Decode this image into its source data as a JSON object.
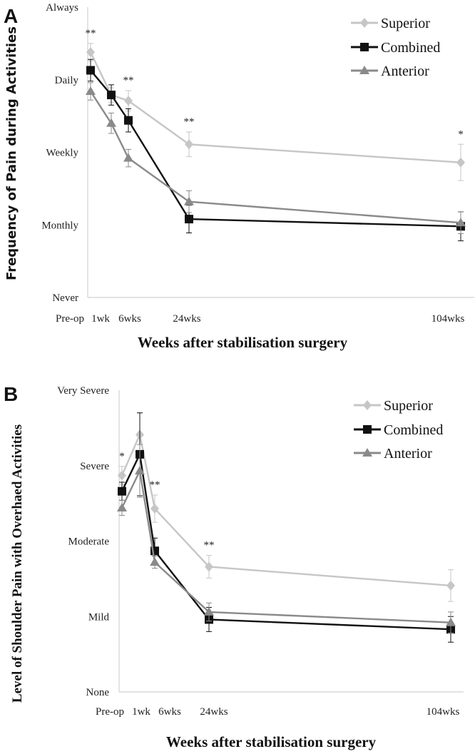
{
  "colors": {
    "Superior": "#c6c6c6",
    "Combined": "#111111",
    "Anterior": "#8a8a8a"
  },
  "chart_data": [
    {
      "panel_label": "A",
      "type": "line",
      "ylabel": "Frequency of Pain during Activities",
      "xlabel": "Weeks after stabilisation surgery",
      "y_tick_labels": [
        "Never",
        "Monthly",
        "Weekly",
        "Daily",
        "Always"
      ],
      "ylim": [
        0,
        4
      ],
      "categories": [
        "Pre-op",
        "1wk",
        "6wks",
        "24wks",
        "104wks"
      ],
      "legend_position": "top-right",
      "grid": false,
      "series": [
        {
          "name": "Superior",
          "marker": "diamond",
          "values": [
            3.38,
            2.79,
            2.71,
            2.11,
            1.86
          ],
          "error": [
            0.12,
            0.1,
            0.14,
            0.17,
            0.25
          ]
        },
        {
          "name": "Combined",
          "marker": "square",
          "values": [
            3.13,
            2.79,
            2.44,
            1.08,
            0.98
          ],
          "error": [
            0.15,
            0.14,
            0.16,
            0.19,
            0.2
          ]
        },
        {
          "name": "Anterior",
          "marker": "triangle",
          "values": [
            2.84,
            2.4,
            1.92,
            1.32,
            1.03
          ],
          "error": [
            0.12,
            0.14,
            0.12,
            0.15,
            0.15
          ]
        }
      ],
      "annotations": [
        {
          "category": "Pre-op",
          "text": "**"
        },
        {
          "category": "6wks",
          "text": "**"
        },
        {
          "category": "24wks",
          "text": "**"
        },
        {
          "category": "104wks",
          "text": "*"
        }
      ]
    },
    {
      "panel_label": "B",
      "type": "line",
      "ylabel": "Level of Shoulder Pain with Overhaed Activities",
      "xlabel": "Weeks after stabilisation surgery",
      "y_tick_labels": [
        "None",
        "Mild",
        "Moderate",
        "Severe",
        "Very Severe"
      ],
      "ylim": [
        0,
        4
      ],
      "categories": [
        "Pre-op",
        "1wk",
        "6wks",
        "24wks",
        "104wks"
      ],
      "legend_position": "top-right",
      "grid": false,
      "series": [
        {
          "name": "Superior",
          "marker": "diamond",
          "values": [
            2.87,
            3.41,
            2.43,
            1.66,
            1.41
          ],
          "error": [
            0.12,
            0.29,
            0.18,
            0.15,
            0.21
          ]
        },
        {
          "name": "Combined",
          "marker": "square",
          "values": [
            2.66,
            3.15,
            1.87,
            0.96,
            0.83
          ],
          "error": [
            0.12,
            0.55,
            0.17,
            0.16,
            0.17
          ]
        },
        {
          "name": "Anterior",
          "marker": "triangle",
          "values": [
            2.44,
            2.93,
            1.72,
            1.06,
            0.92
          ],
          "error": [
            0.1,
            0.35,
            0.08,
            0.12,
            0.14
          ]
        }
      ],
      "annotations": [
        {
          "category": "Pre-op",
          "text": "*"
        },
        {
          "category": "6wks",
          "text": "**"
        },
        {
          "category": "24wks",
          "text": "**"
        }
      ]
    }
  ]
}
